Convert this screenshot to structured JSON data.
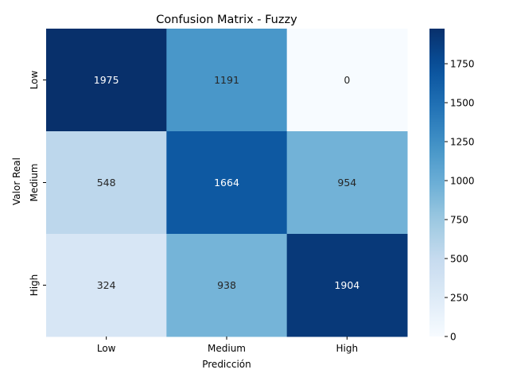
{
  "chart_data": {
    "type": "heatmap",
    "title": "Confusion Matrix - Fuzzy",
    "xlabel": "Predicción",
    "ylabel": "Valor Real",
    "x_categories": [
      "Low",
      "Medium",
      "High"
    ],
    "y_categories": [
      "Low",
      "Medium",
      "High"
    ],
    "values": [
      [
        1975,
        1191,
        0
      ],
      [
        548,
        1664,
        954
      ],
      [
        324,
        938,
        1904
      ]
    ],
    "colormap": "Blues",
    "colorbar": {
      "range": [
        0,
        1975
      ],
      "ticks": [
        0,
        250,
        500,
        750,
        1000,
        1250,
        1500,
        1750
      ]
    },
    "grid": false
  }
}
